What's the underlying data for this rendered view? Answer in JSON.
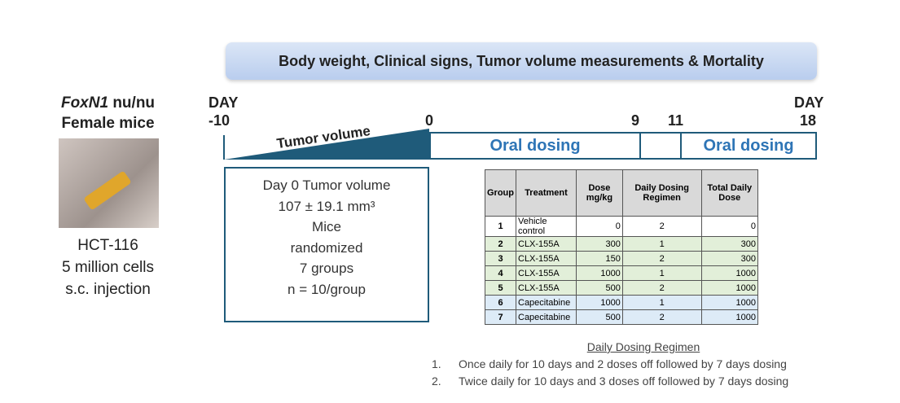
{
  "banner": "Body weight, Clinical signs, Tumor volume measurements & Mortality",
  "model": {
    "strain": "FoxN1",
    "genotype": "nu/nu",
    "sex": "Female mice",
    "cell_line": "HCT-116",
    "cells": "5 million cells",
    "route": "s.c. injection"
  },
  "timeline": {
    "start": {
      "label": "DAY",
      "day": "-10"
    },
    "end": {
      "label": "DAY",
      "day": "18"
    },
    "days": [
      "0",
      "9",
      "11"
    ],
    "tumor_label": "Tumor volume",
    "dosing": [
      "Oral dosing",
      "Oral dosing"
    ]
  },
  "baseline": {
    "lines": [
      "Day 0 Tumor volume",
      "107 ± 19.1 mm³",
      "Mice",
      "randomized",
      "7 groups",
      "n = 10/group"
    ]
  },
  "table": {
    "header": [
      "Group",
      "Treatment",
      "Dose mg/kg",
      "Daily Dosing Regimen",
      "Total Daily Dose"
    ],
    "rows": [
      [
        1,
        "Vehicle control",
        0,
        2,
        0
      ],
      [
        2,
        "CLX-155A",
        300,
        1,
        300
      ],
      [
        3,
        "CLX-155A",
        150,
        2,
        300
      ],
      [
        4,
        "CLX-155A",
        1000,
        1,
        1000
      ],
      [
        5,
        "CLX-155A",
        500,
        2,
        1000
      ],
      [
        6,
        "Capecitabine",
        1000,
        1,
        1000
      ],
      [
        7,
        "Capecitabine",
        500,
        2,
        1000
      ]
    ],
    "row_colors": [
      "#ffffff",
      "#e2efd9",
      "#e2efd9",
      "#e2efd9",
      "#e2efd9",
      "#ddebf7",
      "#ddebf7"
    ]
  },
  "notes": {
    "title": "Daily Dosing Regimen",
    "items": [
      {
        "num": "1.",
        "text": "Once daily for 10 days and 2 doses off followed by 7 days dosing"
      },
      {
        "num": "2.",
        "text": "Twice daily for 10 days and 3 doses off followed by 7 days dosing"
      }
    ]
  }
}
